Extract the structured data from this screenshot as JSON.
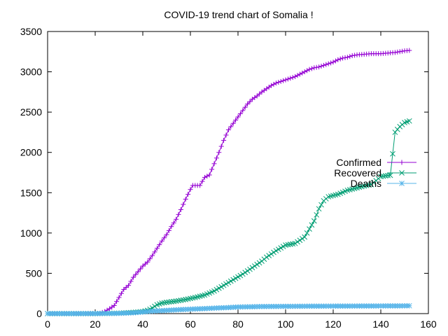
{
  "chart_data": {
    "type": "line",
    "title": "COVID-19 trend chart of Somalia !",
    "xlabel": "",
    "ylabel": "",
    "xlim": [
      0,
      160
    ],
    "ylim": [
      0,
      3500
    ],
    "x_ticks": [
      0,
      20,
      40,
      60,
      80,
      100,
      120,
      140,
      160
    ],
    "y_ticks": [
      0,
      500,
      1000,
      1500,
      2000,
      2500,
      3000,
      3500
    ],
    "grid": false,
    "legend": "right",
    "series": [
      {
        "name": "Confirmed",
        "color": "#9400d3",
        "marker": "plus",
        "points": [
          [
            0,
            0
          ],
          [
            10,
            0
          ],
          [
            20,
            2
          ],
          [
            22,
            5
          ],
          [
            24,
            25
          ],
          [
            26,
            60
          ],
          [
            28,
            100
          ],
          [
            30,
            200
          ],
          [
            32,
            300
          ],
          [
            34,
            350
          ],
          [
            36,
            450
          ],
          [
            38,
            520
          ],
          [
            40,
            590
          ],
          [
            42,
            640
          ],
          [
            44,
            720
          ],
          [
            46,
            810
          ],
          [
            48,
            900
          ],
          [
            50,
            980
          ],
          [
            52,
            1080
          ],
          [
            54,
            1170
          ],
          [
            56,
            1290
          ],
          [
            58,
            1420
          ],
          [
            60,
            1540
          ],
          [
            61,
            1590
          ],
          [
            62,
            1590
          ],
          [
            64,
            1590
          ],
          [
            66,
            1690
          ],
          [
            68,
            1720
          ],
          [
            70,
            1860
          ],
          [
            72,
            2000
          ],
          [
            74,
            2150
          ],
          [
            76,
            2280
          ],
          [
            78,
            2360
          ],
          [
            80,
            2440
          ],
          [
            82,
            2520
          ],
          [
            84,
            2600
          ],
          [
            86,
            2660
          ],
          [
            88,
            2700
          ],
          [
            90,
            2750
          ],
          [
            92,
            2790
          ],
          [
            94,
            2830
          ],
          [
            96,
            2860
          ],
          [
            98,
            2880
          ],
          [
            100,
            2900
          ],
          [
            102,
            2920
          ],
          [
            104,
            2940
          ],
          [
            106,
            2970
          ],
          [
            108,
            3000
          ],
          [
            110,
            3030
          ],
          [
            112,
            3050
          ],
          [
            114,
            3060
          ],
          [
            116,
            3080
          ],
          [
            118,
            3100
          ],
          [
            120,
            3120
          ],
          [
            122,
            3150
          ],
          [
            124,
            3170
          ],
          [
            126,
            3180
          ],
          [
            128,
            3200
          ],
          [
            130,
            3210
          ],
          [
            132,
            3215
          ],
          [
            134,
            3220
          ],
          [
            136,
            3225
          ],
          [
            138,
            3225
          ],
          [
            140,
            3225
          ],
          [
            142,
            3230
          ],
          [
            144,
            3235
          ],
          [
            146,
            3240
          ],
          [
            148,
            3250
          ],
          [
            150,
            3260
          ],
          [
            152,
            3265
          ]
        ]
      },
      {
        "name": "Recovered",
        "color": "#009e73",
        "marker": "cross",
        "points": [
          [
            0,
            0
          ],
          [
            20,
            0
          ],
          [
            30,
            5
          ],
          [
            36,
            15
          ],
          [
            40,
            25
          ],
          [
            42,
            40
          ],
          [
            44,
            70
          ],
          [
            46,
            110
          ],
          [
            48,
            130
          ],
          [
            50,
            140
          ],
          [
            54,
            155
          ],
          [
            58,
            175
          ],
          [
            62,
            200
          ],
          [
            66,
            230
          ],
          [
            70,
            280
          ],
          [
            74,
            350
          ],
          [
            78,
            420
          ],
          [
            82,
            490
          ],
          [
            86,
            570
          ],
          [
            90,
            650
          ],
          [
            92,
            700
          ],
          [
            96,
            780
          ],
          [
            100,
            850
          ],
          [
            104,
            870
          ],
          [
            106,
            910
          ],
          [
            108,
            950
          ],
          [
            110,
            1050
          ],
          [
            112,
            1150
          ],
          [
            114,
            1300
          ],
          [
            116,
            1400
          ],
          [
            118,
            1450
          ],
          [
            122,
            1480
          ],
          [
            126,
            1530
          ],
          [
            130,
            1560
          ],
          [
            134,
            1590
          ],
          [
            136,
            1600
          ],
          [
            138,
            1650
          ],
          [
            140,
            1700
          ],
          [
            142,
            1710
          ],
          [
            144,
            1715
          ],
          [
            146,
            2250
          ],
          [
            148,
            2320
          ],
          [
            150,
            2370
          ],
          [
            152,
            2390
          ]
        ]
      },
      {
        "name": "Deaths",
        "color": "#56b4e9",
        "marker": "star",
        "points": [
          [
            0,
            0
          ],
          [
            20,
            0
          ],
          [
            30,
            3
          ],
          [
            36,
            10
          ],
          [
            40,
            20
          ],
          [
            44,
            30
          ],
          [
            50,
            40
          ],
          [
            56,
            50
          ],
          [
            60,
            55
          ],
          [
            66,
            62
          ],
          [
            70,
            68
          ],
          [
            76,
            75
          ],
          [
            80,
            82
          ],
          [
            86,
            85
          ],
          [
            90,
            88
          ],
          [
            100,
            90
          ],
          [
            110,
            92
          ],
          [
            120,
            93
          ],
          [
            130,
            94
          ],
          [
            140,
            95
          ],
          [
            150,
            96
          ],
          [
            152,
            97
          ]
        ]
      }
    ]
  }
}
